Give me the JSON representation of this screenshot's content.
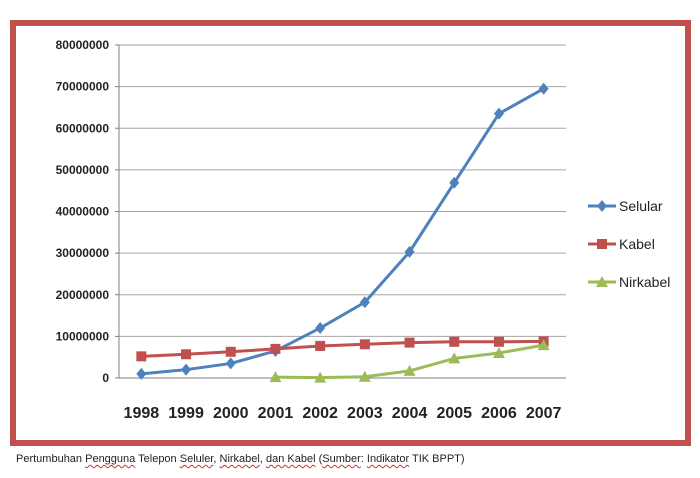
{
  "caption": {
    "part1": "Pertumbuhan ",
    "part2": "Pengguna",
    "part3": " Telepon ",
    "part4": "Seluler",
    "part5": ", ",
    "part6": "Nirkabel",
    "part7": ", ",
    "part8": "dan Kabel",
    "part9": " (",
    "part10": "Sumber",
    "part11": ": ",
    "part12": "Indikator",
    "part13": " TIK BPPT)"
  },
  "chart_data": {
    "type": "line",
    "categories": [
      "1998",
      "1999",
      "2000",
      "2001",
      "2002",
      "2003",
      "2004",
      "2005",
      "2006",
      "2007"
    ],
    "ylim": [
      0,
      80000000
    ],
    "yticks": [
      0,
      10000000,
      20000000,
      30000000,
      40000000,
      50000000,
      60000000,
      70000000,
      80000000
    ],
    "ytick_labels": [
      "0",
      "10000000",
      "20000000",
      "30000000",
      "40000000",
      "50000000",
      "60000000",
      "70000000",
      "80000000"
    ],
    "grid": "horizontal",
    "legend": "right",
    "series": [
      {
        "name": "Selular",
        "color": "#4f81bd",
        "marker": "diamond",
        "values": [
          1000000,
          2000000,
          3500000,
          6500000,
          12000000,
          18200000,
          30300000,
          46900000,
          63500000,
          69500000
        ]
      },
      {
        "name": "Kabel",
        "color": "#c0504d",
        "marker": "square",
        "values": [
          5200000,
          5700000,
          6300000,
          7000000,
          7700000,
          8100000,
          8500000,
          8700000,
          8700000,
          8800000
        ]
      },
      {
        "name": "Nirkabel",
        "color": "#9bbb59",
        "marker": "triangle",
        "values": [
          null,
          null,
          null,
          200000,
          100000,
          300000,
          1700000,
          4700000,
          6000000,
          7900000
        ]
      }
    ]
  }
}
